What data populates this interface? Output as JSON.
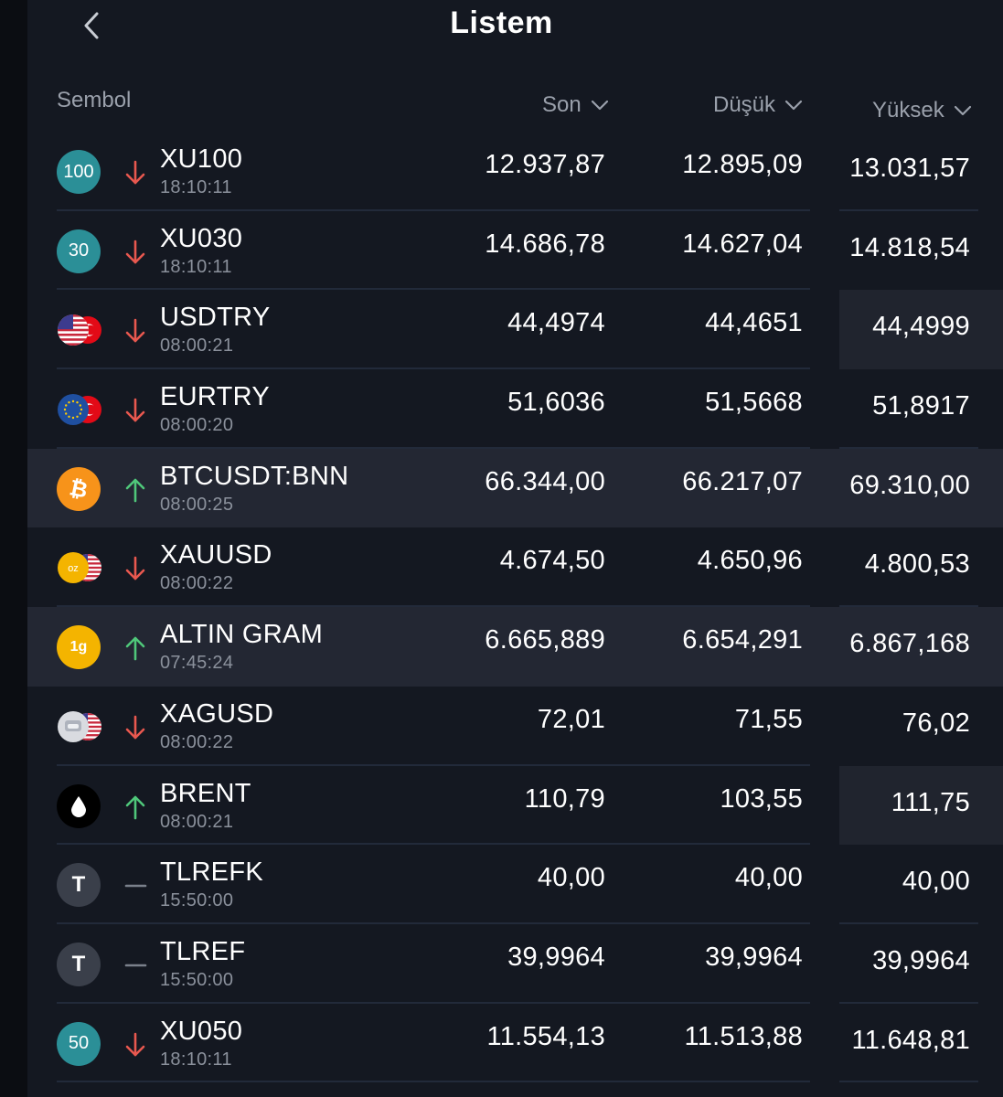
{
  "header": {
    "title": "Listem",
    "back_icon": "chevron-left-icon"
  },
  "columns": {
    "symbol": "Sembol",
    "last": "Son",
    "low": "Düşük",
    "high": "Yüksek"
  },
  "colors": {
    "down": "#e8584f",
    "up": "#4fc77a",
    "neutral": "#7a808b",
    "highlight_row": "#232733"
  },
  "rows": [
    {
      "logo": "100",
      "logo_type": "index",
      "dir": "down",
      "symbol": "XU100",
      "time": "18:10:11",
      "son": "12.937,87",
      "dusuk": "12.895,09",
      "yuksek": "13.031,57"
    },
    {
      "logo": "30",
      "logo_type": "index",
      "dir": "down",
      "symbol": "XU030",
      "time": "18:10:11",
      "son": "14.686,78",
      "dusuk": "14.627,04",
      "yuksek": "14.818,54"
    },
    {
      "logo": "us-tr-flags",
      "logo_type": "flags",
      "dir": "down",
      "symbol": "USDTRY",
      "time": "08:00:21",
      "son": "44,4974",
      "dusuk": "44,4651",
      "yuksek": "44,4999"
    },
    {
      "logo": "eu-tr-flags",
      "logo_type": "flags",
      "dir": "down",
      "symbol": "EURTRY",
      "time": "08:00:20",
      "son": "51,6036",
      "dusuk": "51,5668",
      "yuksek": "51,8917"
    },
    {
      "logo": "bitcoin-icon",
      "logo_type": "crypto",
      "dir": "up",
      "symbol": "BTCUSDT:BNN",
      "time": "08:00:25",
      "son": "66.344,00",
      "dusuk": "66.217,07",
      "yuksek": "69.310,00"
    },
    {
      "logo": "oz",
      "logo_type": "gold-us",
      "dir": "down",
      "symbol": "XAUUSD",
      "time": "08:00:22",
      "son": "4.674,50",
      "dusuk": "4.650,96",
      "yuksek": "4.800,53"
    },
    {
      "logo": "1g",
      "logo_type": "gold",
      "dir": "up",
      "symbol": "ALTIN GRAM",
      "time": "07:45:24",
      "son": "6.665,889",
      "dusuk": "6.654,291",
      "yuksek": "6.867,168"
    },
    {
      "logo": "silver-us",
      "logo_type": "silver-us",
      "dir": "down",
      "symbol": "XAGUSD",
      "time": "08:00:22",
      "son": "72,01",
      "dusuk": "71,55",
      "yuksek": "76,02"
    },
    {
      "logo": "oil-drop-icon",
      "logo_type": "oil",
      "dir": "up",
      "symbol": "BRENT",
      "time": "08:00:21",
      "son": "110,79",
      "dusuk": "103,55",
      "yuksek": "111,75"
    },
    {
      "logo": "T",
      "logo_type": "letter",
      "dir": "flat",
      "symbol": "TLREFK",
      "time": "15:50:00",
      "son": "40,00",
      "dusuk": "40,00",
      "yuksek": "40,00"
    },
    {
      "logo": "T",
      "logo_type": "letter",
      "dir": "flat",
      "symbol": "TLREF",
      "time": "15:50:00",
      "son": "39,9964",
      "dusuk": "39,9964",
      "yuksek": "39,9964"
    },
    {
      "logo": "50",
      "logo_type": "index",
      "dir": "down",
      "symbol": "XU050",
      "time": "18:10:11",
      "son": "11.554,13",
      "dusuk": "11.513,88",
      "yuksek": "11.648,81"
    }
  ]
}
